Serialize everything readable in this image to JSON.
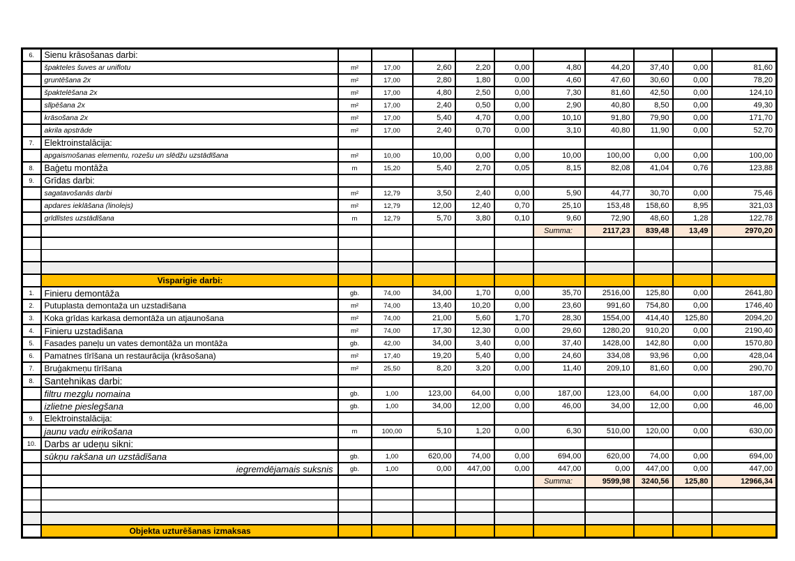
{
  "colors": {
    "section_header_bg": "#FFC000",
    "summa_bg": "#FDE9D9",
    "spacer_gray_bg": "#EFEFEF",
    "border": "#000000"
  },
  "rows": [
    {
      "t": "sec",
      "n": "6.",
      "d": "Sienu krāsošanas darbi:",
      "dc": "sec"
    },
    {
      "t": "item",
      "d": "špakteles šuves ar uniflotu",
      "dc": "ital",
      "u": "m²",
      "q": "17,00",
      "v": [
        "2,60",
        "2,20",
        "0,00",
        "4,80",
        "44,20",
        "37,40",
        "0,00",
        "81,60"
      ]
    },
    {
      "t": "item",
      "d": "gruntēšana 2x",
      "dc": "ital",
      "u": "m²",
      "q": "17,00",
      "v": [
        "2,80",
        "1,80",
        "0,00",
        "4,60",
        "47,60",
        "30,60",
        "0,00",
        "78,20"
      ]
    },
    {
      "t": "item",
      "d": "špaktelēšana 2x",
      "dc": "ital",
      "u": "m²",
      "q": "17,00",
      "v": [
        "4,80",
        "2,50",
        "0,00",
        "7,30",
        "81,60",
        "42,50",
        "0,00",
        "124,10"
      ]
    },
    {
      "t": "item",
      "d": "slīpēšana 2x",
      "dc": "ital",
      "u": "m²",
      "q": "17,00",
      "v": [
        "2,40",
        "0,50",
        "0,00",
        "2,90",
        "40,80",
        "8,50",
        "0,00",
        "49,30"
      ]
    },
    {
      "t": "item",
      "d": "krāsošana 2x",
      "dc": "ital",
      "u": "m²",
      "q": "17,00",
      "v": [
        "5,40",
        "4,70",
        "0,00",
        "10,10",
        "91,80",
        "79,90",
        "0,00",
        "171,70"
      ]
    },
    {
      "t": "item",
      "d": "akrila apstrāde",
      "dc": "ital",
      "u": "m²",
      "q": "17,00",
      "v": [
        "2,40",
        "0,70",
        "0,00",
        "3,10",
        "40,80",
        "11,90",
        "0,00",
        "52,70"
      ]
    },
    {
      "t": "sec",
      "n": "7.",
      "d": "Elektroinstalācija:",
      "dc": "sec"
    },
    {
      "t": "item",
      "d": "apgaismošanas elementu, rozešu un slēdžu uzstādīšana",
      "dc": "ital",
      "u": "m²",
      "q": "10,00",
      "v": [
        "10,00",
        "0,00",
        "0,00",
        "10,00",
        "100,00",
        "0,00",
        "0,00",
        "100,00"
      ]
    },
    {
      "t": "item",
      "n": "8.",
      "d": "Baģetu montāža",
      "dc": "sec",
      "u": "m",
      "q": "15,20",
      "v": [
        "5,40",
        "2,70",
        "0,05",
        "8,15",
        "82,08",
        "41,04",
        "0,76",
        "123,88"
      ]
    },
    {
      "t": "sec",
      "n": "9.",
      "d": "Grīdas darbi:",
      "dc": "sec"
    },
    {
      "t": "item",
      "d": "sagatavošanās darbi",
      "dc": "ital",
      "u": "m²",
      "q": "12,79",
      "v": [
        "3,50",
        "2,40",
        "0,00",
        "5,90",
        "44,77",
        "30,70",
        "0,00",
        "75,46"
      ]
    },
    {
      "t": "item",
      "d": "apdares ieklāšana (linolejs)",
      "dc": "ital",
      "u": "m²",
      "q": "12,79",
      "v": [
        "12,00",
        "12,40",
        "0,70",
        "25,10",
        "153,48",
        "158,60",
        "8,95",
        "321,03"
      ]
    },
    {
      "t": "item",
      "d": "grīdlīstes uzstādīšana",
      "dc": "ital",
      "u": "m",
      "q": "12,79",
      "v": [
        "5,70",
        "3,80",
        "0,10",
        "9,60",
        "72,90",
        "48,60",
        "1,28",
        "122,78"
      ]
    },
    {
      "t": "summa",
      "label": "Summa:",
      "totals": [
        "2117,23",
        "839,48",
        "13,49",
        "2970,20"
      ]
    },
    {
      "t": "e"
    },
    {
      "t": "e"
    },
    {
      "t": "gray"
    },
    {
      "t": "orange",
      "d": "Visparigie darbi:"
    },
    {
      "t": "item",
      "n": "1.",
      "d": "Finieru demontāža",
      "dc": "reg2",
      "u": "gb.",
      "q": "74,00",
      "v": [
        "34,00",
        "1,70",
        "0,00",
        "35,70",
        "2516,00",
        "125,80",
        "0,00",
        "2641,80"
      ]
    },
    {
      "t": "item",
      "n": "2.",
      "d": "Putuplasta demontaža un uzstadišana",
      "dc": "reg",
      "u": "m²",
      "q": "74,00",
      "v": [
        "13,40",
        "10,20",
        "0,00",
        "23,60",
        "991,60",
        "754,80",
        "0,00",
        "1746,40"
      ]
    },
    {
      "t": "item",
      "n": "3.",
      "d": "Koka grīdas karkasa demontāža un atjaunošana",
      "dc": "reg",
      "u": "m²",
      "q": "74,00",
      "v": [
        "21,00",
        "5,60",
        "1,70",
        "28,30",
        "1554,00",
        "414,40",
        "125,80",
        "2094,20"
      ]
    },
    {
      "t": "item",
      "n": "4.",
      "d": "Finieru uzstadišana",
      "dc": "reg2",
      "u": "m²",
      "q": "74,00",
      "v": [
        "17,30",
        "12,30",
        "0,00",
        "29,60",
        "1280,20",
        "910,20",
        "0,00",
        "2190,40"
      ]
    },
    {
      "t": "item",
      "n": "5.",
      "d": "Fasades paneļu un vates demontāža un montāža",
      "dc": "reg",
      "u": "gb.",
      "q": "42,00",
      "v": [
        "34,00",
        "3,40",
        "0,00",
        "37,40",
        "1428,00",
        "142,80",
        "0,00",
        "1570,80"
      ]
    },
    {
      "t": "item",
      "n": "6.",
      "d": "Pamatnes tīrīšana un restaurācija (krāsošana)",
      "dc": "reg",
      "u": "m²",
      "q": "17,40",
      "v": [
        "19,20",
        "5,40",
        "0,00",
        "24,60",
        "334,08",
        "93,96",
        "0,00",
        "428,04"
      ]
    },
    {
      "t": "item",
      "n": "7.",
      "d": "Bruģakmeņu tīrīšana",
      "dc": "reg",
      "u": "m²",
      "q": "25,50",
      "v": [
        "8,20",
        "3,20",
        "0,00",
        "11,40",
        "209,10",
        "81,60",
        "0,00",
        "290,70"
      ]
    },
    {
      "t": "sec",
      "n": "8.",
      "d": "Santehnikas darbi:",
      "dc": "sec2"
    },
    {
      "t": "item",
      "d": "filtru mezglu nomaina",
      "dc": "ital2",
      "u": "gb.",
      "q": "1,00",
      "v": [
        "123,00",
        "64,00",
        "0,00",
        "187,00",
        "123,00",
        "64,00",
        "0,00",
        "187,00"
      ]
    },
    {
      "t": "item",
      "d": "izlietne pieslegšana",
      "dc": "ital2",
      "u": "gb.",
      "q": "1,00",
      "v": [
        "34,00",
        "12,00",
        "0,00",
        "46,00",
        "34,00",
        "12,00",
        "0,00",
        "46,00"
      ]
    },
    {
      "t": "sec",
      "n": "9.",
      "d": "Elektroinstalācija:",
      "dc": "sec"
    },
    {
      "t": "item",
      "d": "jaunu vadu eirikošana",
      "dc": "ital2",
      "u": "m",
      "q": "100,00",
      "v": [
        "5,10",
        "1,20",
        "0,00",
        "6,30",
        "510,00",
        "120,00",
        "0,00",
        "630,00"
      ]
    },
    {
      "t": "sec",
      "n": "10.",
      "d": "Darbs ar udeņu sikni:",
      "dc": "sec2"
    },
    {
      "t": "item",
      "d": "sūkņu rakšana un uzstādīšana",
      "dc": "ital2",
      "u": "gb.",
      "q": "1,00",
      "v": [
        "620,00",
        "74,00",
        "0,00",
        "694,00",
        "620,00",
        "74,00",
        "0,00",
        "694,00"
      ]
    },
    {
      "t": "item",
      "d": "iegremdējamais suksnis",
      "dc": "italr",
      "u": "gb.",
      "q": "1,00",
      "v": [
        "0,00",
        "447,00",
        "0,00",
        "447,00",
        "0,00",
        "447,00",
        "0,00",
        "447,00"
      ]
    },
    {
      "t": "summa",
      "label": "Summa:",
      "totals": [
        "9599,98",
        "3240,56",
        "125,80",
        "12966,34"
      ]
    },
    {
      "t": "e"
    },
    {
      "t": "e"
    },
    {
      "t": "gray"
    },
    {
      "t": "orange",
      "d": "Objekta uzturēšanas izmaksas"
    }
  ]
}
